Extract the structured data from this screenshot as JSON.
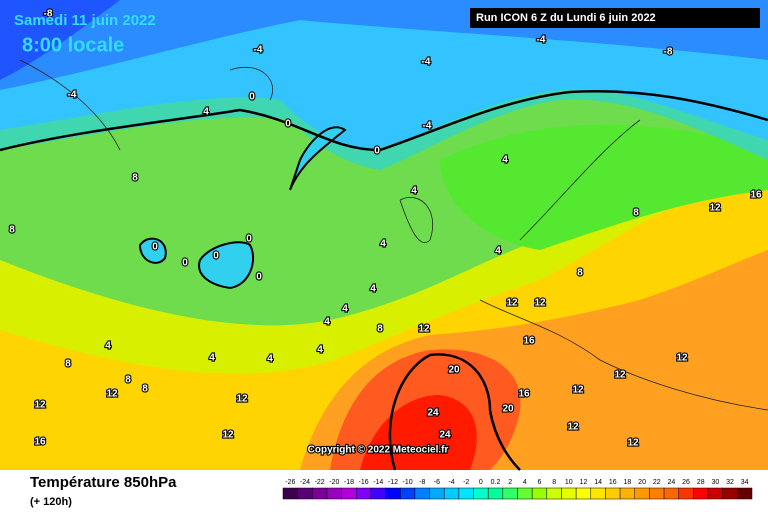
{
  "header": {
    "date": "Samedi 11 juin 2022",
    "time": "8:00 locale",
    "run": "Run ICON 6 Z du Lundi 6 juin 2022"
  },
  "map": {
    "copyright": "Copyright © 2022 Meteociel.fr",
    "contour_labels": [
      "-8",
      "-4",
      "-4",
      "-4",
      "-8",
      "-4",
      "0",
      "4",
      "0",
      "-4",
      "0",
      "8",
      "4",
      "4",
      "8",
      "0",
      "0",
      "0",
      "0",
      "0",
      "4",
      "4",
      "8",
      "4",
      "4",
      "4",
      "8",
      "12",
      "12",
      "12",
      "4",
      "8",
      "4",
      "4",
      "4",
      "16",
      "20",
      "16",
      "20",
      "24",
      "24",
      "12",
      "12",
      "12",
      "12",
      "12",
      "12",
      "12",
      "16",
      "12",
      "12",
      "16",
      "8",
      "12",
      "8",
      "8"
    ]
  },
  "footer": {
    "title": "Température 850hPa",
    "lead": "(+ 120h)"
  },
  "color_scale": [
    {
      "label": "-26",
      "color": "#3d0050"
    },
    {
      "label": "-24",
      "color": "#5a0075"
    },
    {
      "label": "-22",
      "color": "#7a0099"
    },
    {
      "label": "-20",
      "color": "#9900bb"
    },
    {
      "label": "-18",
      "color": "#b300d9"
    },
    {
      "label": "-16",
      "color": "#8000ff"
    },
    {
      "label": "-14",
      "color": "#4000ff"
    },
    {
      "label": "-12",
      "color": "#0000ff"
    },
    {
      "label": "-10",
      "color": "#0040ff"
    },
    {
      "label": "-8",
      "color": "#0080ff"
    },
    {
      "label": "-6",
      "color": "#00aaff"
    },
    {
      "label": "-4",
      "color": "#00ccff"
    },
    {
      "label": "-2",
      "color": "#00e5ff"
    },
    {
      "label": "0",
      "color": "#00ffcc"
    },
    {
      "label": "0.2",
      "color": "#00ff99"
    },
    {
      "label": "2",
      "color": "#33ff66"
    },
    {
      "label": "4",
      "color": "#66ff33"
    },
    {
      "label": "6",
      "color": "#99ff00"
    },
    {
      "label": "8",
      "color": "#ccff00"
    },
    {
      "label": "10",
      "color": "#e5ff00"
    },
    {
      "label": "12",
      "color": "#ffff00"
    },
    {
      "label": "14",
      "color": "#ffe600"
    },
    {
      "label": "16",
      "color": "#ffcc00"
    },
    {
      "label": "18",
      "color": "#ffb300"
    },
    {
      "label": "20",
      "color": "#ff9900"
    },
    {
      "label": "22",
      "color": "#ff8000"
    },
    {
      "label": "24",
      "color": "#ff6600"
    },
    {
      "label": "26",
      "color": "#ff3300"
    },
    {
      "label": "28",
      "color": "#ff0000"
    },
    {
      "label": "30",
      "color": "#cc0000"
    },
    {
      "label": "32",
      "color": "#990000"
    },
    {
      "label": "34",
      "color": "#660000"
    }
  ]
}
